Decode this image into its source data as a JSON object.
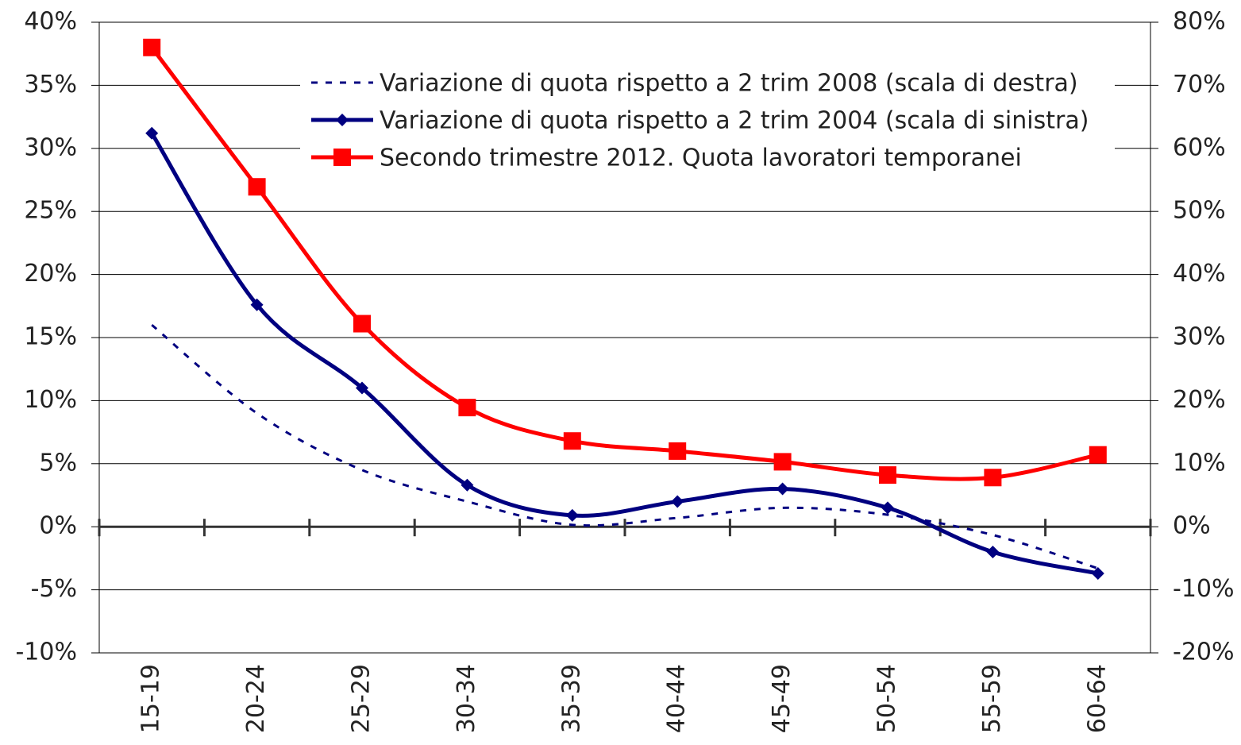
{
  "chart_data": {
    "type": "line",
    "categories": [
      "15-19",
      "20-24",
      "25-29",
      "30-34",
      "35-39",
      "40-44",
      "45-49",
      "50-54",
      "55-59",
      "60-64"
    ],
    "series": [
      {
        "name": "Variazione di quota rispetto a 2 trim 2008 (scala di destra)",
        "color": "#000080",
        "dash": true,
        "axis": "y2",
        "values": [
          32,
          18,
          9,
          4,
          0.3,
          1.4,
          3,
          1.9,
          -1.3,
          -6.6
        ]
      },
      {
        "name": "Variazione di quota rispetto a 2 trim 2004 (scala di sinistra)",
        "color": "#000080",
        "marker": "diamond",
        "values": [
          31.2,
          17.6,
          11.0,
          3.3,
          0.9,
          2.0,
          3.0,
          1.5,
          -2.0,
          -3.7
        ]
      },
      {
        "name": "Secondo trimestre 2012. Quota lavoratori temporanei",
        "color": "#ff0000",
        "marker": "square",
        "axis": "y2",
        "values": [
          76,
          53.9,
          32.2,
          18.9,
          13.6,
          12.0,
          10.3,
          8.2,
          7.8,
          11.4
        ]
      }
    ],
    "ylim": [
      -10,
      40
    ],
    "yticks": [
      {
        "value": -10,
        "label": "-10%"
      },
      {
        "value": -5,
        "label": "-5%"
      },
      {
        "value": 0,
        "label": "0%"
      },
      {
        "value": 5,
        "label": "5%"
      },
      {
        "value": 10,
        "label": "10%"
      },
      {
        "value": 15,
        "label": "15%"
      },
      {
        "value": 20,
        "label": "20%"
      },
      {
        "value": 25,
        "label": "25%"
      },
      {
        "value": 30,
        "label": "30%"
      },
      {
        "value": 35,
        "label": "35%"
      },
      {
        "value": 40,
        "label": "40%"
      }
    ],
    "y2lim": [
      -20,
      80
    ],
    "y2ticks": [
      {
        "value": -20,
        "label": "-20%"
      },
      {
        "value": -10,
        "label": "-10%"
      },
      {
        "value": 0,
        "label": "0%"
      },
      {
        "value": 10,
        "label": "10%"
      },
      {
        "value": 20,
        "label": "20%"
      },
      {
        "value": 30,
        "label": "30%"
      },
      {
        "value": 40,
        "label": "40%"
      },
      {
        "value": 50,
        "label": "50%"
      },
      {
        "value": 60,
        "label": "60%"
      },
      {
        "value": 70,
        "label": "70%"
      },
      {
        "value": 80,
        "label": "80%"
      }
    ],
    "grid": true,
    "legend": "top"
  }
}
